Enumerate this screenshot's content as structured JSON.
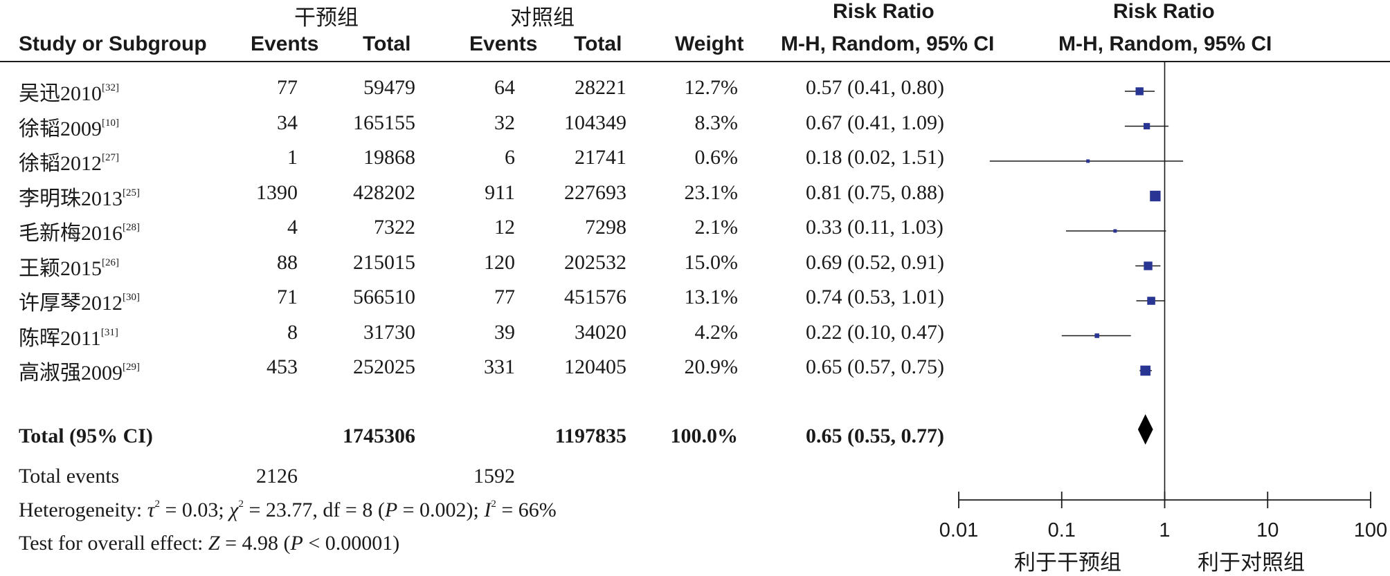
{
  "chart_data": {
    "type": "forest",
    "headers": {
      "group_intervention": "干预组",
      "group_control": "对照组",
      "risk_ratio": "Risk Ratio",
      "study_or_subgroup": "Study or Subgroup",
      "events": "Events",
      "total": "Total",
      "weight": "Weight",
      "method_ci": "M-H, Random, 95% CI"
    },
    "studies": [
      {
        "name": "吴迅2010",
        "ref": "[32]",
        "int_events": "77",
        "int_total": "59479",
        "ctl_events": "64",
        "ctl_total": "28221",
        "weight": "12.7%",
        "ci_text": "0.57 (0.41, 0.80)",
        "rr": 0.57,
        "lo": 0.41,
        "hi": 0.8,
        "w": 12.7
      },
      {
        "name": "徐韬2009",
        "ref": "[10]",
        "int_events": "34",
        "int_total": "165155",
        "ctl_events": "32",
        "ctl_total": "104349",
        "weight": "8.3%",
        "ci_text": "0.67 (0.41, 1.09)",
        "rr": 0.67,
        "lo": 0.41,
        "hi": 1.09,
        "w": 8.3
      },
      {
        "name": "徐韬2012",
        "ref": "[27]",
        "int_events": "1",
        "int_total": "19868",
        "ctl_events": "6",
        "ctl_total": "21741",
        "weight": "0.6%",
        "ci_text": "0.18 (0.02, 1.51)",
        "rr": 0.18,
        "lo": 0.02,
        "hi": 1.51,
        "w": 0.6
      },
      {
        "name": "李明珠2013",
        "ref": "[25]",
        "int_events": "1390",
        "int_total": "428202",
        "ctl_events": "911",
        "ctl_total": "227693",
        "weight": "23.1%",
        "ci_text": "0.81 (0.75, 0.88)",
        "rr": 0.81,
        "lo": 0.75,
        "hi": 0.88,
        "w": 23.1
      },
      {
        "name": "毛新梅2016",
        "ref": "[28]",
        "int_events": "4",
        "int_total": "7322",
        "ctl_events": "12",
        "ctl_total": "7298",
        "weight": "2.1%",
        "ci_text": "0.33 (0.11, 1.03)",
        "rr": 0.33,
        "lo": 0.11,
        "hi": 1.03,
        "w": 2.1
      },
      {
        "name": "王颖2015",
        "ref": "[26]",
        "int_events": "88",
        "int_total": "215015",
        "ctl_events": "120",
        "ctl_total": "202532",
        "weight": "15.0%",
        "ci_text": "0.69 (0.52, 0.91)",
        "rr": 0.69,
        "lo": 0.52,
        "hi": 0.91,
        "w": 15.0
      },
      {
        "name": "许厚琴2012",
        "ref": "[30]",
        "int_events": "71",
        "int_total": "566510",
        "ctl_events": "77",
        "ctl_total": "451576",
        "weight": "13.1%",
        "ci_text": "0.74 (0.53, 1.01)",
        "rr": 0.74,
        "lo": 0.53,
        "hi": 1.01,
        "w": 13.1
      },
      {
        "name": "陈晖2011",
        "ref": "[31]",
        "int_events": "8",
        "int_total": "31730",
        "ctl_events": "39",
        "ctl_total": "34020",
        "weight": "4.2%",
        "ci_text": "0.22 (0.10, 0.47)",
        "rr": 0.22,
        "lo": 0.1,
        "hi": 0.47,
        "w": 4.2
      },
      {
        "name": "高淑强2009",
        "ref": "[29]",
        "int_events": "453",
        "int_total": "252025",
        "ctl_events": "331",
        "ctl_total": "120405",
        "weight": "20.9%",
        "ci_text": "0.65 (0.57, 0.75)",
        "rr": 0.65,
        "lo": 0.57,
        "hi": 0.75,
        "w": 20.9
      }
    ],
    "total": {
      "label": "Total (95% CI)",
      "int_total": "1745306",
      "ctl_total": "1197835",
      "weight": "100.0%",
      "ci_text": "0.65 (0.55, 0.77)",
      "rr": 0.65,
      "lo": 0.55,
      "hi": 0.77
    },
    "total_events": {
      "label": "Total events",
      "int": "2126",
      "ctl": "1592"
    },
    "heterogeneity": {
      "prefix": "Heterogeneity: ",
      "tau": "τ",
      "tau_rest": " = 0.03; ",
      "chi": "χ",
      "chi_rest": " = 23.77, df = 8 (",
      "p": "P",
      "p_rest": " = 0.002); ",
      "i": "I",
      "i_rest": " = 66%"
    },
    "overall_effect": {
      "prefix": "Test for overall effect: ",
      "z": "Z",
      "z_rest": " = 4.98 (",
      "p": "P",
      "p_rest": " < 0.00001)"
    },
    "axis": {
      "scale": "log",
      "xlim": [
        0.01,
        100
      ],
      "ticks": [
        0.01,
        0.1,
        1,
        10,
        100
      ],
      "tick_labels": [
        "0.01",
        "0.1",
        "1",
        "10",
        "100"
      ],
      "reference_line": 1,
      "favours_left": "利于干预组",
      "favours_right": "利于对照组"
    },
    "colors": {
      "marker": "#283593",
      "line": "#1a1a1a",
      "diamond": "#000000"
    }
  }
}
